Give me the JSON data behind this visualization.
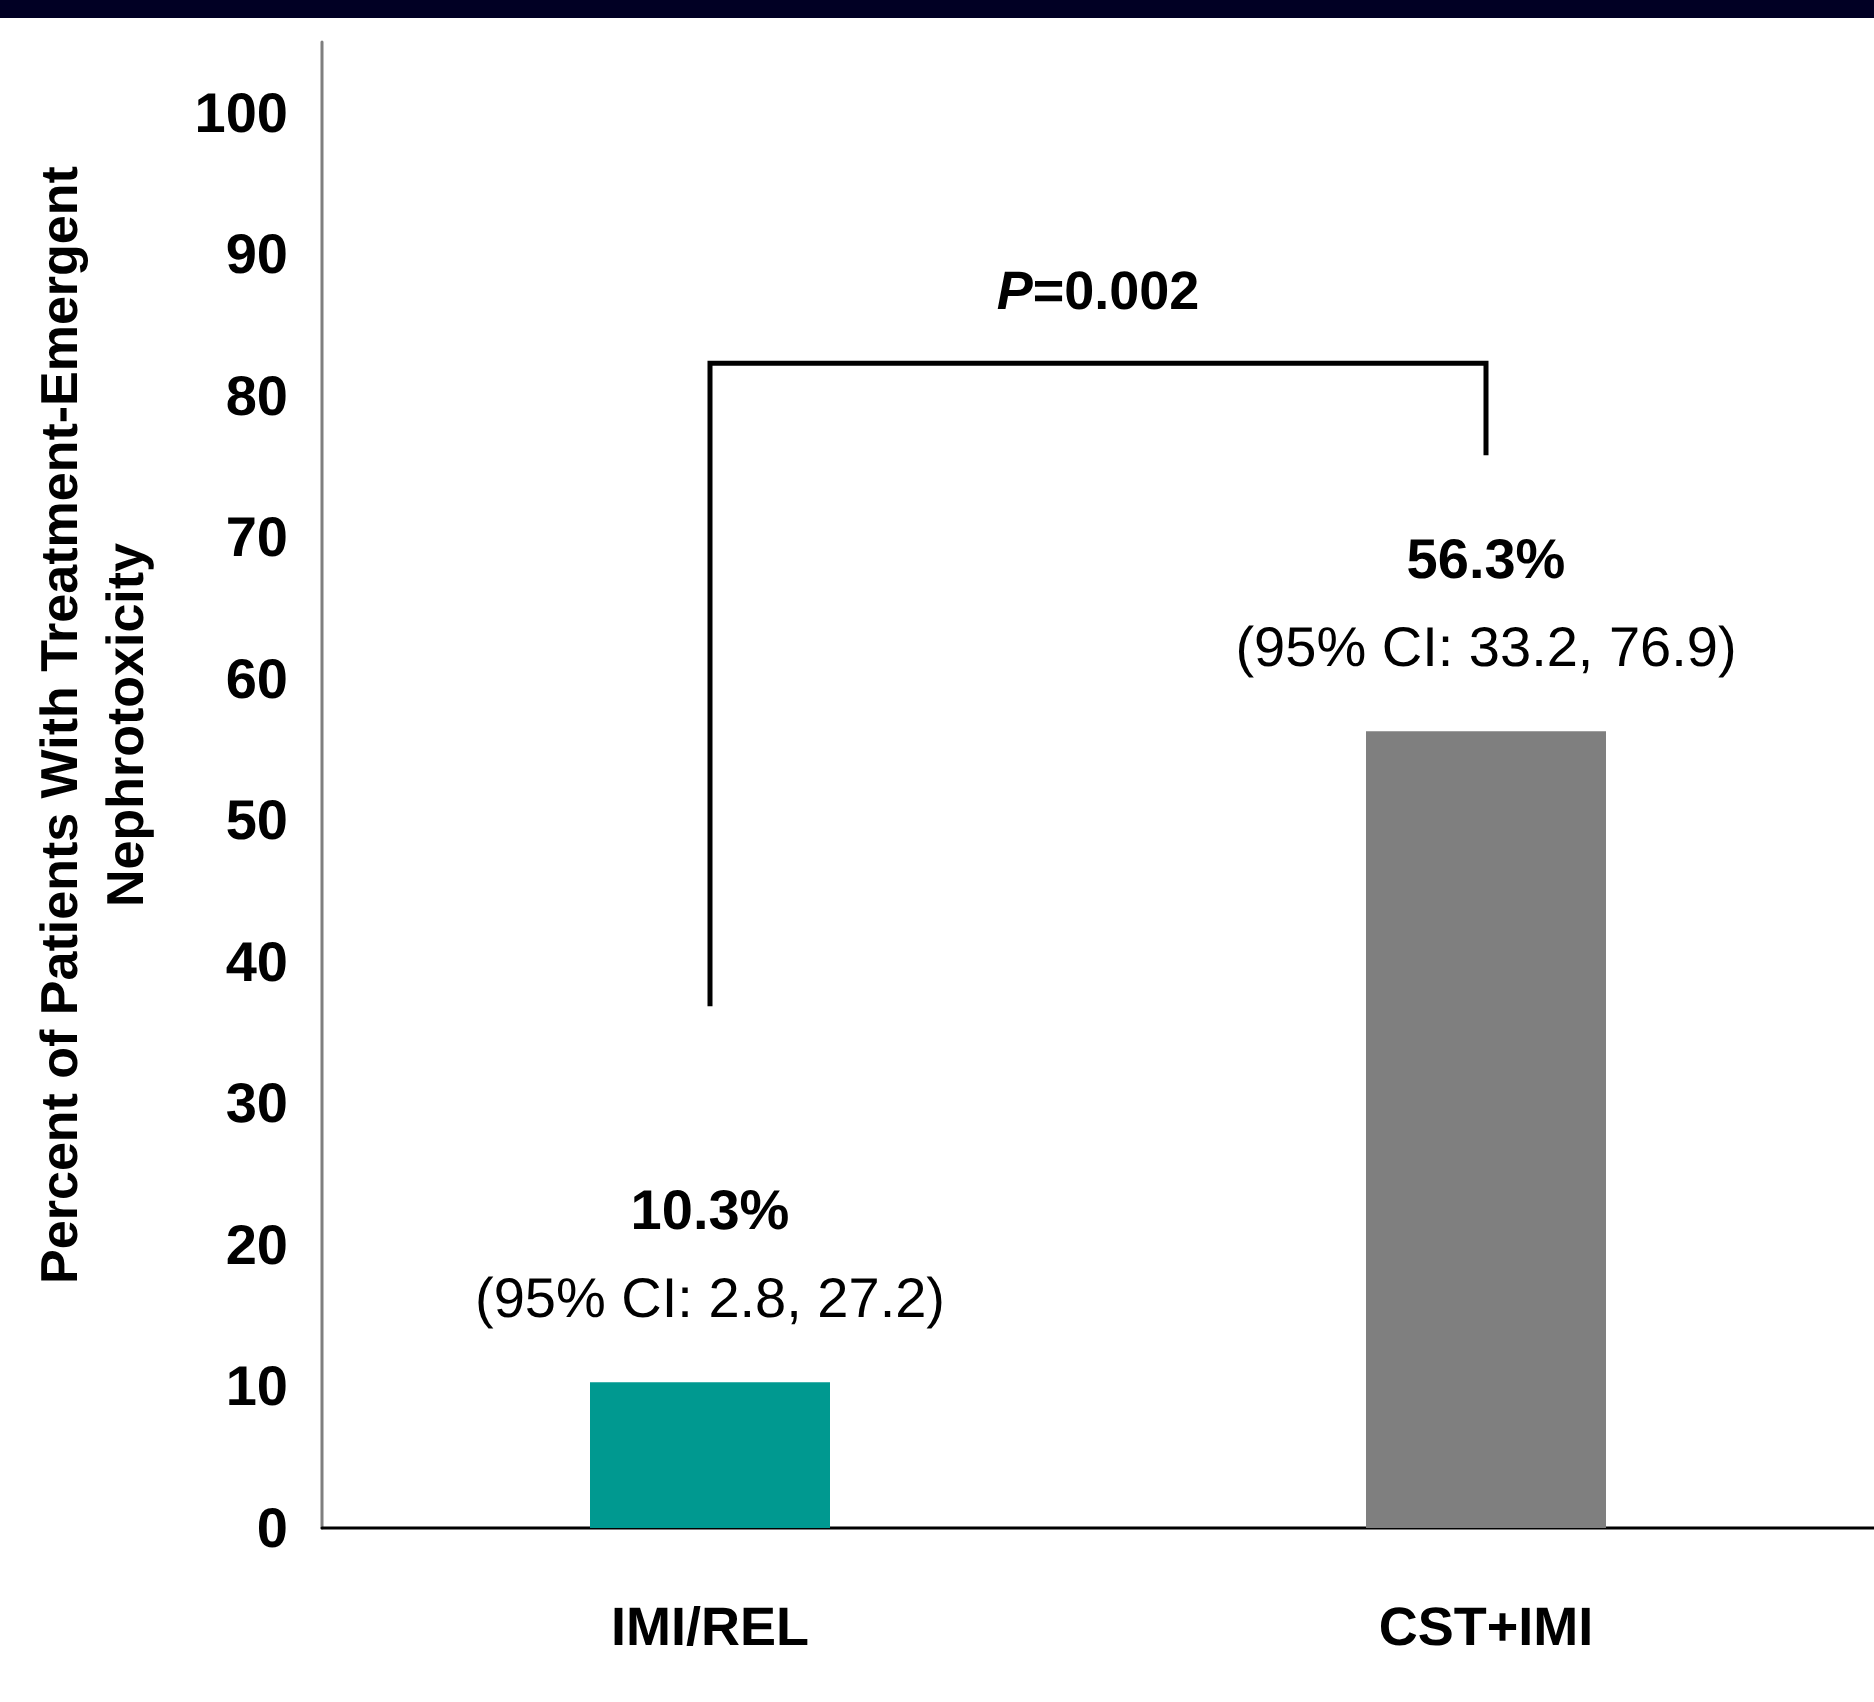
{
  "chart_data": {
    "type": "bar",
    "ylabel": "Percent of Patients With Treatment-Emergent\nNephrotoxicity",
    "categories": [
      "IMI/REL",
      "CST+IMI"
    ],
    "values": [
      10.3,
      56.3
    ],
    "colors": [
      "#009990",
      "#7f7f7f"
    ],
    "value_labels": [
      "10.3%\n(95% CI: 2.8, 27.2)",
      "56.3%\n(95% CI: 33.2, 76.9)"
    ],
    "ylim": [
      0,
      105
    ],
    "yticks": [
      0,
      10,
      20,
      30,
      40,
      50,
      60,
      70,
      80,
      90,
      100
    ],
    "annotations": [
      "P=0.002"
    ]
  }
}
